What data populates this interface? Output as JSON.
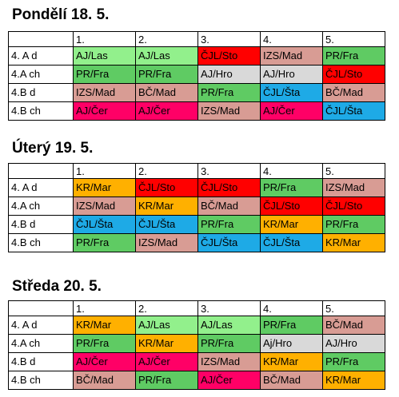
{
  "days": [
    {
      "title": "Pondělí 18. 5.",
      "periods": [
        "1.",
        "2.",
        "3.",
        "4.",
        "5."
      ],
      "rows": [
        {
          "class": "4. A d",
          "cells": [
            {
              "t": "AJ/Las",
              "c": "aj"
            },
            {
              "t": "AJ/Las",
              "c": "aj"
            },
            {
              "t": "ČJL/Sto",
              "c": "cjl"
            },
            {
              "t": "IZS/Mad",
              "c": "izs"
            },
            {
              "t": "PR/Fra",
              "c": "pr"
            }
          ]
        },
        {
          "class": "4.A ch",
          "cells": [
            {
              "t": "PR/Fra",
              "c": "pr"
            },
            {
              "t": "PR/Fra",
              "c": "pr"
            },
            {
              "t": "AJ/Hro",
              "c": "hro"
            },
            {
              "t": "AJ/Hro",
              "c": "hro"
            },
            {
              "t": "ČJL/Sto",
              "c": "cjl"
            }
          ]
        },
        {
          "class": "4.B d",
          "cells": [
            {
              "t": "IZS/Mad",
              "c": "izs"
            },
            {
              "t": "BČ/Mad",
              "c": "bc"
            },
            {
              "t": "PR/Fra",
              "c": "pr"
            },
            {
              "t": "ČJL/Šta",
              "c": "sta"
            },
            {
              "t": "BČ/Mad",
              "c": "bc"
            }
          ]
        },
        {
          "class": "4.B ch",
          "cells": [
            {
              "t": "AJ/Čer",
              "c": "cer"
            },
            {
              "t": "AJ/Čer",
              "c": "cer"
            },
            {
              "t": "IZS/Mad",
              "c": "izs"
            },
            {
              "t": "AJ/Čer",
              "c": "cer"
            },
            {
              "t": "ČJL/Šta",
              "c": "sta"
            }
          ]
        }
      ]
    },
    {
      "title": "Úterý 19. 5.",
      "periods": [
        "1.",
        "2.",
        "3.",
        "4.",
        "5."
      ],
      "rows": [
        {
          "class": "4. A d",
          "cells": [
            {
              "t": "KR/Mar",
              "c": "kr"
            },
            {
              "t": "ČJL/Sto",
              "c": "cjl"
            },
            {
              "t": "ČJL/Sto",
              "c": "cjl"
            },
            {
              "t": "PR/Fra",
              "c": "pr"
            },
            {
              "t": "IZS/Mad",
              "c": "izs"
            }
          ]
        },
        {
          "class": "4.A ch",
          "cells": [
            {
              "t": "IZS/Mad",
              "c": "izs"
            },
            {
              "t": "KR/Mar",
              "c": "kr"
            },
            {
              "t": "BČ/Mad",
              "c": "bc"
            },
            {
              "t": "ČJL/Sto",
              "c": "cjl"
            },
            {
              "t": "ČJL/Sto",
              "c": "cjl"
            }
          ]
        },
        {
          "class": "4.B d",
          "cells": [
            {
              "t": "ČJL/Šta",
              "c": "sta"
            },
            {
              "t": "ČJL/Šta",
              "c": "sta"
            },
            {
              "t": "PR/Fra",
              "c": "pr"
            },
            {
              "t": "KR/Mar",
              "c": "kr"
            },
            {
              "t": "PR/Fra",
              "c": "pr"
            }
          ]
        },
        {
          "class": "4.B ch",
          "cells": [
            {
              "t": "PR/Fra",
              "c": "pr"
            },
            {
              "t": "IZS/Mad",
              "c": "izs"
            },
            {
              "t": "ČJL/Šta",
              "c": "sta"
            },
            {
              "t": "ČJL/Šta",
              "c": "sta"
            },
            {
              "t": "KR/Mar",
              "c": "kr"
            }
          ]
        }
      ]
    },
    {
      "title": "Středa 20. 5.",
      "periods": [
        "1.",
        "2.",
        "3.",
        "4.",
        "5."
      ],
      "rows": [
        {
          "class": "4. A d",
          "cells": [
            {
              "t": "KR/Mar",
              "c": "kr"
            },
            {
              "t": "AJ/Las",
              "c": "aj"
            },
            {
              "t": "AJ/Las",
              "c": "aj"
            },
            {
              "t": "PR/Fra",
              "c": "pr"
            },
            {
              "t": "BČ/Mad",
              "c": "bc"
            }
          ]
        },
        {
          "class": "4.A ch",
          "cells": [
            {
              "t": "PR/Fra",
              "c": "pr"
            },
            {
              "t": "KR/Mar",
              "c": "kr"
            },
            {
              "t": "PR/Fra",
              "c": "pr"
            },
            {
              "t": "Aj/Hro",
              "c": "hro"
            },
            {
              "t": "AJ/Hro",
              "c": "hro"
            }
          ]
        },
        {
          "class": "4.B d",
          "cells": [
            {
              "t": "AJ/Čer",
              "c": "cer"
            },
            {
              "t": "AJ/Čer",
              "c": "cer"
            },
            {
              "t": "IZS/Mad",
              "c": "izs"
            },
            {
              "t": "KR/Mar",
              "c": "kr"
            },
            {
              "t": "PR/Fra",
              "c": "pr"
            }
          ]
        },
        {
          "class": "4.B ch",
          "cells": [
            {
              "t": "BČ/Mad",
              "c": "bc"
            },
            {
              "t": "PR/Fra",
              "c": "pr"
            },
            {
              "t": "AJ/Čer",
              "c": "cer"
            },
            {
              "t": "BČ/Mad",
              "c": "bc"
            },
            {
              "t": "KR/Mar",
              "c": "kr"
            }
          ]
        }
      ]
    }
  ],
  "colors": {
    "aj": "#92F08C",
    "pr": "#5FCB63",
    "cjl": "#FF0000",
    "izs": "#D89C94",
    "bc": "#D89C94",
    "kr": "#FFB000",
    "hro": "#D9D9D9",
    "cer": "#FF0066",
    "sta": "#1EAAE6"
  }
}
